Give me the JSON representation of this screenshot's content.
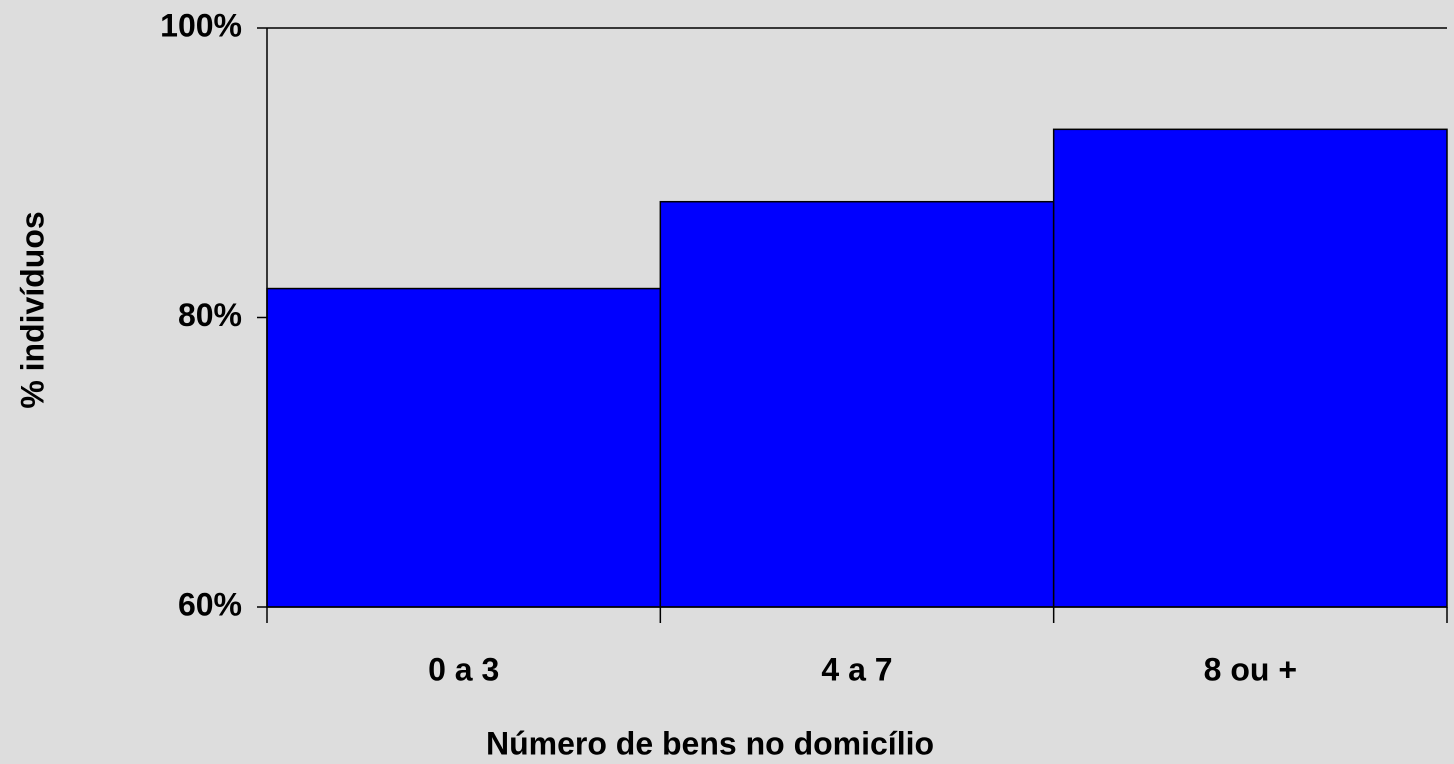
{
  "chart_data": {
    "type": "bar",
    "categories": [
      "0 a 3",
      "4 a 7",
      "8 ou +"
    ],
    "values": [
      82,
      88,
      93
    ],
    "color": "#0000ff",
    "ylim": [
      60,
      100
    ],
    "yticks": [
      {
        "value": 60,
        "label": "60%"
      },
      {
        "value": 80,
        "label": "80%"
      },
      {
        "value": 100,
        "label": "100%"
      }
    ],
    "y_label": "% indivíduos",
    "x_label": "Número de bens no domicílio"
  }
}
